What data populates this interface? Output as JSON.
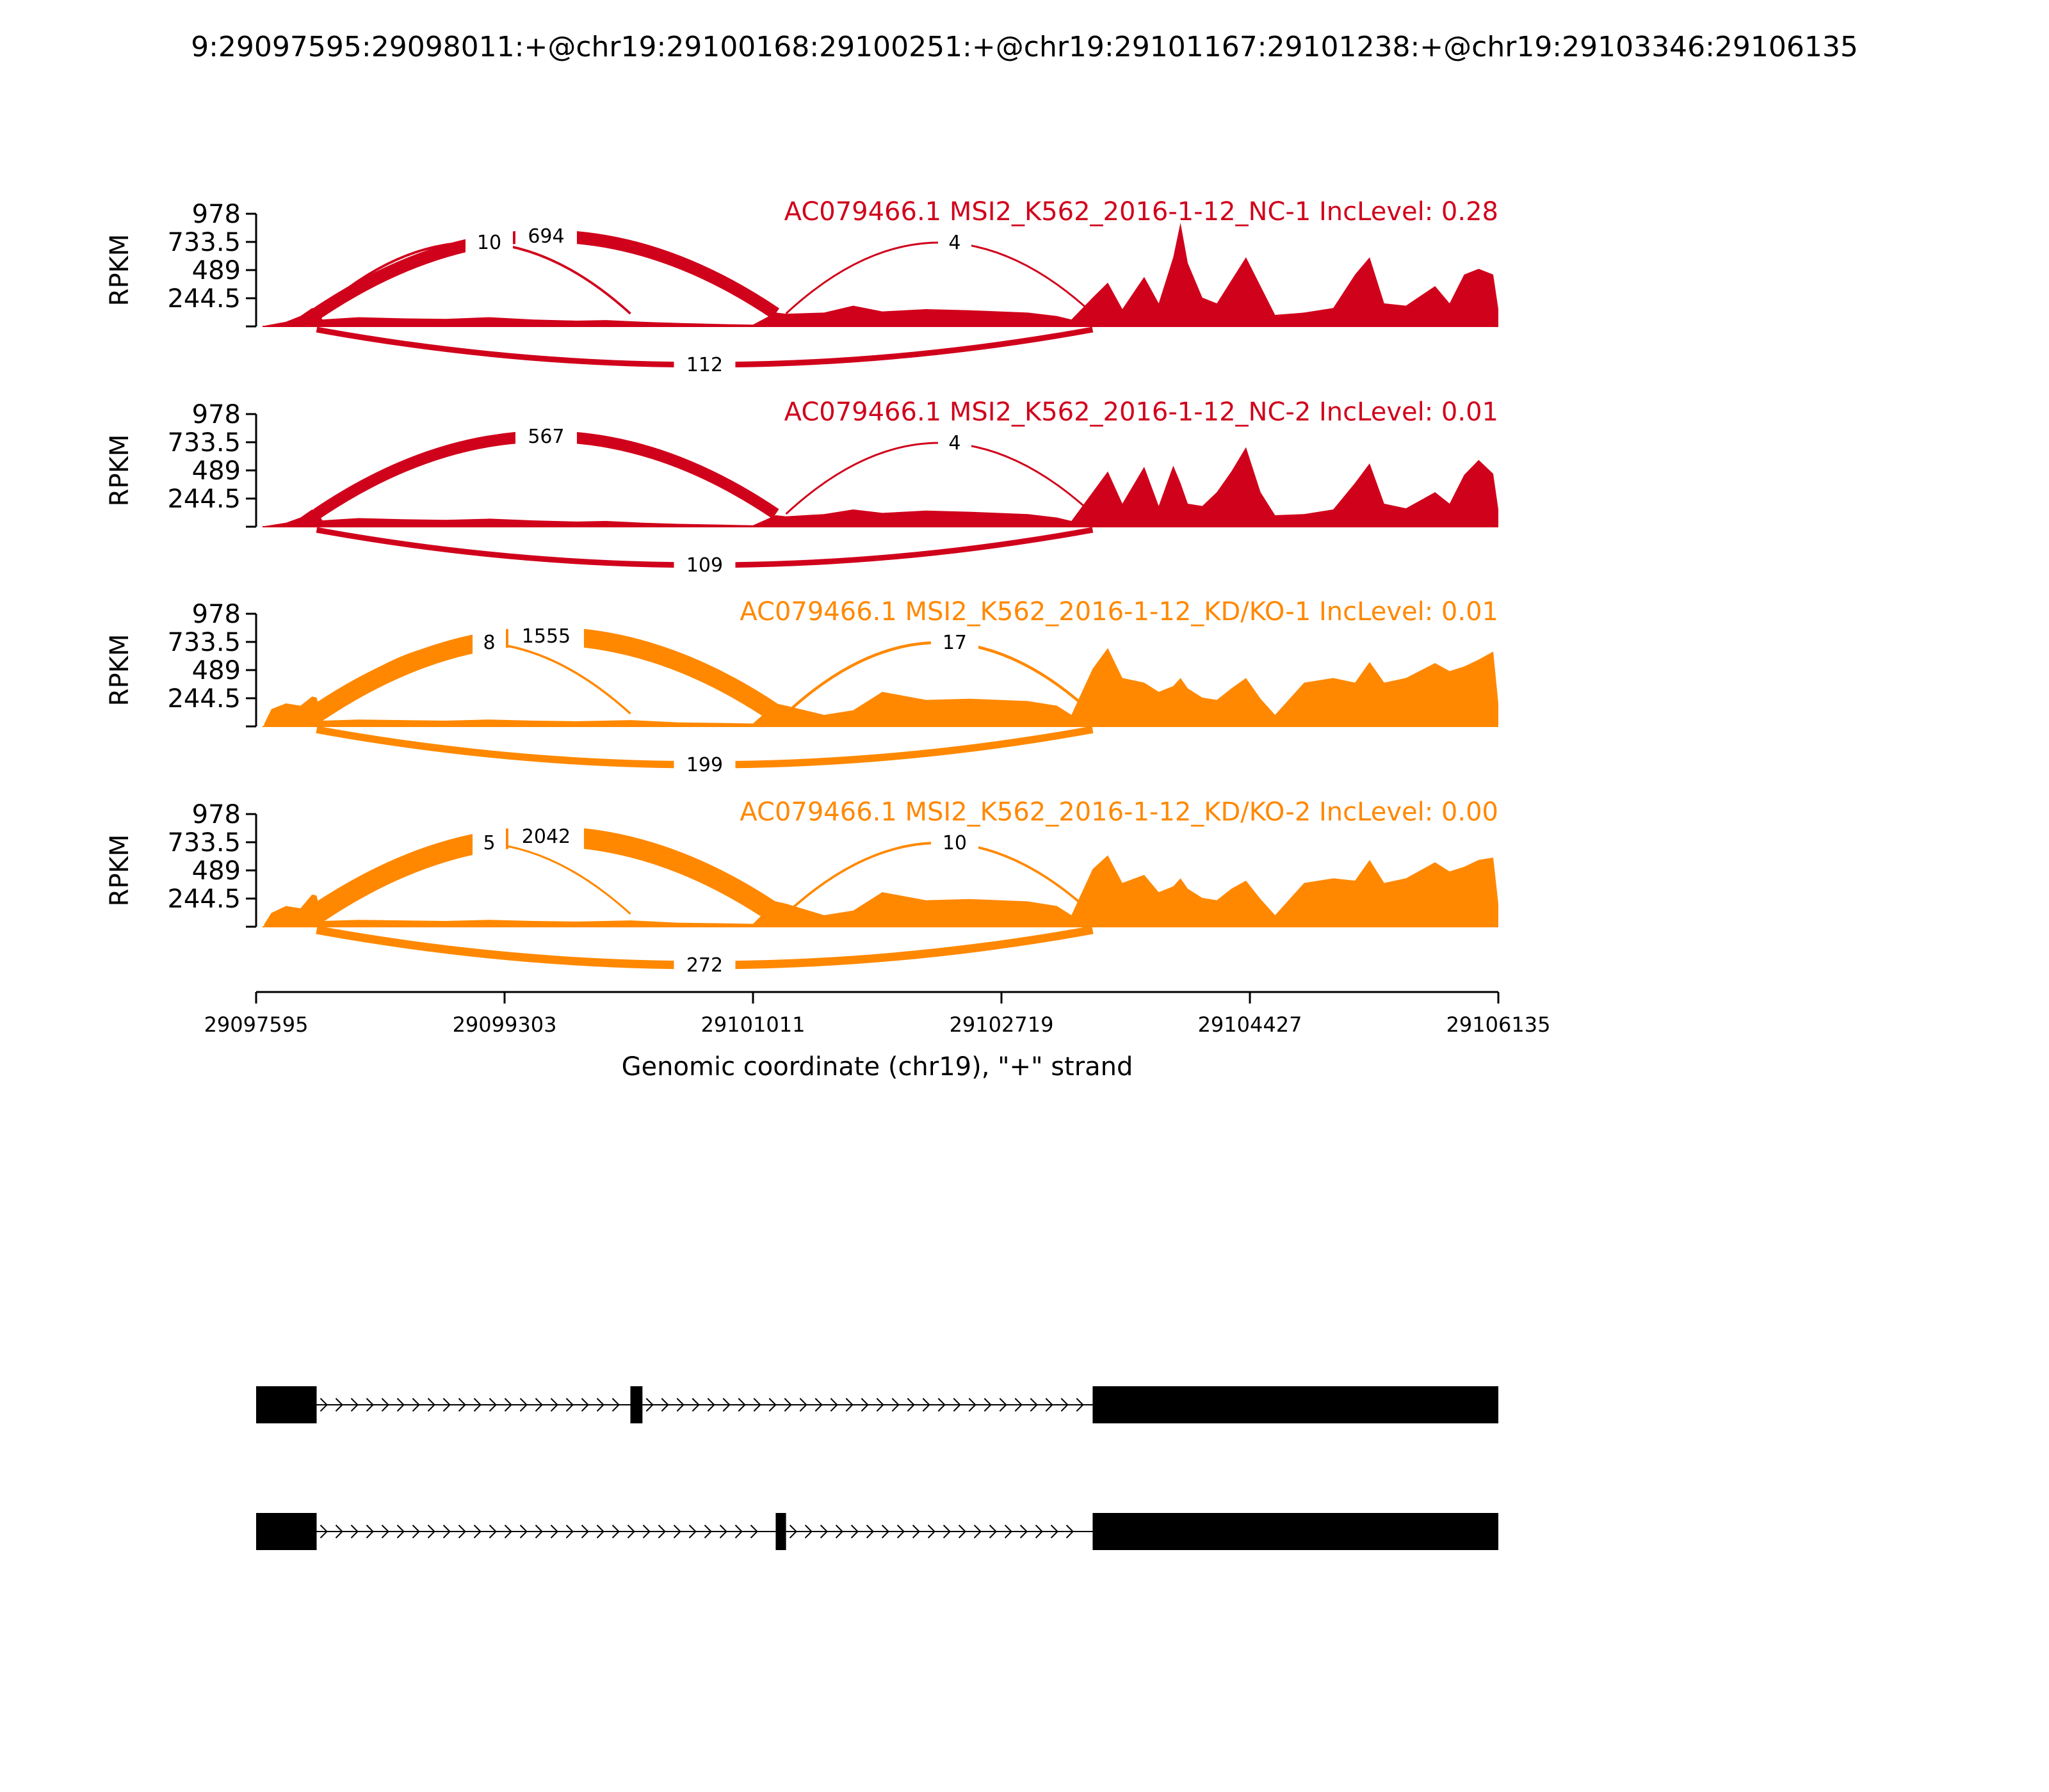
{
  "figure_title": "9:29097595:29098011:+@chr19:29100168:29100251:+@chr19:29101167:29101238:+@chr19:29103346:29106135",
  "colors": {
    "nc": "#d0021b",
    "kd": "#ff8800",
    "axis": "#000000",
    "gene": "#000000"
  },
  "chart_data": {
    "type": "sashimi",
    "xlabel": "Genomic coordinate (chr19), \"+\" strand",
    "xlim": [
      29097595,
      29106135
    ],
    "xticks": [
      "29097595",
      "29099303",
      "29101011",
      "29102719",
      "29104427",
      "29106135"
    ],
    "ylabel": "RPKM",
    "ylim": [
      0,
      978
    ],
    "yticks": [
      "978",
      "733.5",
      "489",
      "244.5"
    ],
    "tracks": [
      {
        "title": "AC079466.1 MSI2_K562_2016-1-12_NC-1 IncLevel: 0.28",
        "color": "nc",
        "coverage": [
          [
            29097650,
            5
          ],
          [
            29097800,
            40
          ],
          [
            29097900,
            90
          ],
          [
            29097980,
            160
          ],
          [
            29098011,
            150
          ],
          [
            29098050,
            60
          ],
          [
            29098300,
            80
          ],
          [
            29098600,
            70
          ],
          [
            29098900,
            65
          ],
          [
            29099200,
            80
          ],
          [
            29099500,
            60
          ],
          [
            29099800,
            50
          ],
          [
            29100000,
            55
          ],
          [
            29100168,
            45
          ],
          [
            29100251,
            40
          ],
          [
            29100500,
            30
          ],
          [
            29100800,
            20
          ],
          [
            29101011,
            15
          ],
          [
            29101167,
            120
          ],
          [
            29101238,
            110
          ],
          [
            29101500,
            120
          ],
          [
            29101700,
            180
          ],
          [
            29101900,
            130
          ],
          [
            29102200,
            150
          ],
          [
            29102500,
            140
          ],
          [
            29102900,
            120
          ],
          [
            29103100,
            90
          ],
          [
            29103200,
            60
          ],
          [
            29103346,
            250
          ],
          [
            29103450,
            380
          ],
          [
            29103550,
            150
          ],
          [
            29103700,
            430
          ],
          [
            29103800,
            200
          ],
          [
            29103900,
            600
          ],
          [
            29103950,
            900
          ],
          [
            29104000,
            550
          ],
          [
            29104100,
            250
          ],
          [
            29104200,
            200
          ],
          [
            29104300,
            400
          ],
          [
            29104400,
            600
          ],
          [
            29104500,
            350
          ],
          [
            29104600,
            100
          ],
          [
            29104800,
            120
          ],
          [
            29105000,
            160
          ],
          [
            29105150,
            450
          ],
          [
            29105250,
            600
          ],
          [
            29105350,
            200
          ],
          [
            29105500,
            180
          ],
          [
            29105700,
            350
          ],
          [
            29105800,
            200
          ],
          [
            29105900,
            450
          ],
          [
            29106000,
            500
          ],
          [
            29106100,
            450
          ],
          [
            29106135,
            150
          ]
        ],
        "junctions": [
          {
            "from": 29098011,
            "to": 29101167,
            "count": "694",
            "side": "above"
          },
          {
            "from": 29098011,
            "to": 29100168,
            "count": "10",
            "side": "above"
          },
          {
            "from": 29101238,
            "to": 29103346,
            "count": "4",
            "side": "above"
          },
          {
            "from": 29098011,
            "to": 29103346,
            "count": "112",
            "side": "below"
          }
        ]
      },
      {
        "title": "AC079466.1 MSI2_K562_2016-1-12_NC-2 IncLevel: 0.01",
        "color": "nc",
        "coverage": [
          [
            29097650,
            5
          ],
          [
            29097800,
            35
          ],
          [
            29097900,
            80
          ],
          [
            29097980,
            150
          ],
          [
            29098011,
            140
          ],
          [
            29098050,
            55
          ],
          [
            29098300,
            75
          ],
          [
            29098600,
            65
          ],
          [
            29098900,
            60
          ],
          [
            29099200,
            70
          ],
          [
            29099500,
            55
          ],
          [
            29099800,
            45
          ],
          [
            29100000,
            50
          ],
          [
            29100168,
            40
          ],
          [
            29100251,
            35
          ],
          [
            29100500,
            25
          ],
          [
            29100800,
            18
          ],
          [
            29101011,
            12
          ],
          [
            29101167,
            100
          ],
          [
            29101238,
            90
          ],
          [
            29101500,
            110
          ],
          [
            29101700,
            150
          ],
          [
            29101900,
            120
          ],
          [
            29102200,
            140
          ],
          [
            29102500,
            130
          ],
          [
            29102900,
            110
          ],
          [
            29103100,
            80
          ],
          [
            29103200,
            50
          ],
          [
            29103346,
            300
          ],
          [
            29103450,
            480
          ],
          [
            29103550,
            200
          ],
          [
            29103700,
            520
          ],
          [
            29103800,
            180
          ],
          [
            29103900,
            530
          ],
          [
            29103950,
            380
          ],
          [
            29104000,
            200
          ],
          [
            29104100,
            180
          ],
          [
            29104200,
            300
          ],
          [
            29104300,
            480
          ],
          [
            29104400,
            690
          ],
          [
            29104500,
            300
          ],
          [
            29104600,
            100
          ],
          [
            29104800,
            110
          ],
          [
            29105000,
            150
          ],
          [
            29105150,
            380
          ],
          [
            29105250,
            550
          ],
          [
            29105350,
            200
          ],
          [
            29105500,
            160
          ],
          [
            29105700,
            300
          ],
          [
            29105800,
            200
          ],
          [
            29105900,
            450
          ],
          [
            29106000,
            580
          ],
          [
            29106100,
            460
          ],
          [
            29106135,
            150
          ]
        ],
        "junctions": [
          {
            "from": 29098011,
            "to": 29101167,
            "count": "567",
            "side": "above"
          },
          {
            "from": 29101238,
            "to": 29103346,
            "count": "4",
            "side": "above"
          },
          {
            "from": 29098011,
            "to": 29103346,
            "count": "109",
            "side": "below"
          }
        ]
      },
      {
        "title": "AC079466.1 MSI2_K562_2016-1-12_KD/KO-1 IncLevel: 0.01",
        "color": "kd",
        "coverage": [
          [
            29097650,
            20
          ],
          [
            29097700,
            150
          ],
          [
            29097800,
            200
          ],
          [
            29097900,
            180
          ],
          [
            29097980,
            260
          ],
          [
            29098011,
            250
          ],
          [
            29098050,
            50
          ],
          [
            29098300,
            60
          ],
          [
            29098600,
            55
          ],
          [
            29098900,
            50
          ],
          [
            29099200,
            60
          ],
          [
            29099500,
            50
          ],
          [
            29099800,
            45
          ],
          [
            29100000,
            50
          ],
          [
            29100168,
            55
          ],
          [
            29100251,
            50
          ],
          [
            29100500,
            35
          ],
          [
            29100800,
            30
          ],
          [
            29101011,
            25
          ],
          [
            29101167,
            200
          ],
          [
            29101238,
            180
          ],
          [
            29101500,
            100
          ],
          [
            29101700,
            140
          ],
          [
            29101900,
            300
          ],
          [
            29102200,
            230
          ],
          [
            29102500,
            240
          ],
          [
            29102900,
            220
          ],
          [
            29103100,
            180
          ],
          [
            29103200,
            100
          ],
          [
            29103346,
            500
          ],
          [
            29103450,
            680
          ],
          [
            29103550,
            420
          ],
          [
            29103700,
            380
          ],
          [
            29103800,
            300
          ],
          [
            29103900,
            350
          ],
          [
            29103950,
            420
          ],
          [
            29104000,
            330
          ],
          [
            29104100,
            250
          ],
          [
            29104200,
            230
          ],
          [
            29104300,
            330
          ],
          [
            29104400,
            420
          ],
          [
            29104500,
            240
          ],
          [
            29104600,
            100
          ],
          [
            29104800,
            380
          ],
          [
            29105000,
            420
          ],
          [
            29105150,
            380
          ],
          [
            29105250,
            560
          ],
          [
            29105350,
            380
          ],
          [
            29105500,
            420
          ],
          [
            29105700,
            550
          ],
          [
            29105800,
            480
          ],
          [
            29105900,
            520
          ],
          [
            29106000,
            580
          ],
          [
            29106100,
            650
          ],
          [
            29106135,
            200
          ]
        ],
        "junctions": [
          {
            "from": 29098011,
            "to": 29101167,
            "count": "1555",
            "side": "above"
          },
          {
            "from": 29098011,
            "to": 29100168,
            "count": "8",
            "side": "above"
          },
          {
            "from": 29101238,
            "to": 29103346,
            "count": "17",
            "side": "above"
          },
          {
            "from": 29098011,
            "to": 29103346,
            "count": "199",
            "side": "below"
          }
        ]
      },
      {
        "title": "AC079466.1 MSI2_K562_2016-1-12_KD/KO-2 IncLevel: 0.00",
        "color": "kd",
        "coverage": [
          [
            29097650,
            20
          ],
          [
            29097700,
            120
          ],
          [
            29097800,
            180
          ],
          [
            29097900,
            160
          ],
          [
            29097980,
            280
          ],
          [
            29098011,
            270
          ],
          [
            29098050,
            50
          ],
          [
            29098300,
            60
          ],
          [
            29098600,
            55
          ],
          [
            29098900,
            50
          ],
          [
            29099200,
            60
          ],
          [
            29099500,
            50
          ],
          [
            29099800,
            45
          ],
          [
            29100000,
            50
          ],
          [
            29100168,
            55
          ],
          [
            29100251,
            50
          ],
          [
            29100500,
            35
          ],
          [
            29100800,
            30
          ],
          [
            29101011,
            25
          ],
          [
            29101167,
            220
          ],
          [
            29101238,
            200
          ],
          [
            29101500,
            100
          ],
          [
            29101700,
            140
          ],
          [
            29101900,
            300
          ],
          [
            29102200,
            230
          ],
          [
            29102500,
            240
          ],
          [
            29102900,
            220
          ],
          [
            29103100,
            180
          ],
          [
            29103200,
            100
          ],
          [
            29103346,
            500
          ],
          [
            29103450,
            620
          ],
          [
            29103550,
            380
          ],
          [
            29103700,
            450
          ],
          [
            29103800,
            300
          ],
          [
            29103900,
            350
          ],
          [
            29103950,
            420
          ],
          [
            29104000,
            330
          ],
          [
            29104100,
            250
          ],
          [
            29104200,
            230
          ],
          [
            29104300,
            330
          ],
          [
            29104400,
            400
          ],
          [
            29104500,
            240
          ],
          [
            29104600,
            100
          ],
          [
            29104800,
            380
          ],
          [
            29105000,
            420
          ],
          [
            29105150,
            400
          ],
          [
            29105250,
            580
          ],
          [
            29105350,
            380
          ],
          [
            29105500,
            420
          ],
          [
            29105700,
            560
          ],
          [
            29105800,
            480
          ],
          [
            29105900,
            520
          ],
          [
            29106000,
            580
          ],
          [
            29106100,
            600
          ],
          [
            29106135,
            200
          ]
        ],
        "junctions": [
          {
            "from": 29098011,
            "to": 29101167,
            "count": "2042",
            "side": "above"
          },
          {
            "from": 29098011,
            "to": 29100168,
            "count": "5",
            "side": "above"
          },
          {
            "from": 29101238,
            "to": 29103346,
            "count": "10",
            "side": "above"
          },
          {
            "from": 29098011,
            "to": 29103346,
            "count": "272",
            "side": "below"
          }
        ]
      }
    ],
    "isoforms": [
      {
        "exons": [
          [
            29097595,
            29098011
          ],
          [
            29100168,
            29100251
          ],
          [
            29103346,
            29106135
          ]
        ]
      },
      {
        "exons": [
          [
            29097595,
            29098011
          ],
          [
            29101167,
            29101238
          ],
          [
            29103346,
            29106135
          ]
        ]
      }
    ]
  }
}
